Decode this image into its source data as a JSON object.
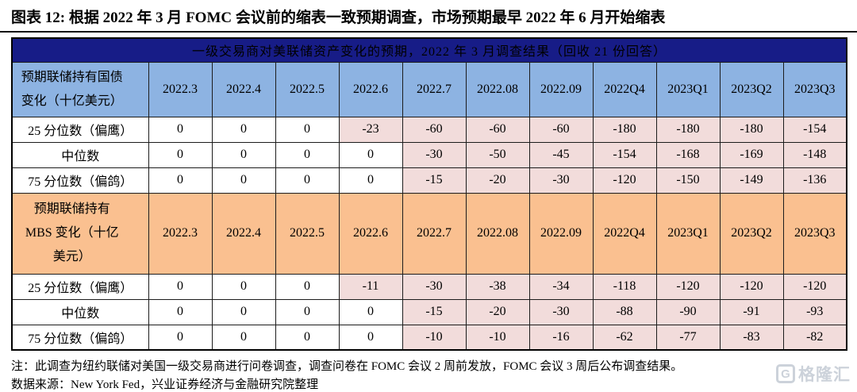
{
  "title": "图表 12: 根据 2022 年 3 月 FOMC 会议前的缩表一致预期调查，市场预期最早 2022 年 6 月开始缩表",
  "table": {
    "banner": "一级交易商对美联储资产变化的预期，2022 年 3 月调查结果（回收 21 份回答）",
    "columns": [
      "2022.3",
      "2022.4",
      "2022.5",
      "2022.6",
      "2022.7",
      "2022.08",
      "2022.09",
      "2022Q4",
      "2023Q1",
      "2023Q2",
      "2023Q3"
    ],
    "divider_before": "2022.7",
    "sections": [
      {
        "header": "预期联储持有国债变化（十亿美元）",
        "rows": [
          {
            "label": "25 分位数（偏鹰）",
            "values": [
              0,
              0,
              0,
              -23,
              -60,
              -60,
              -60,
              -180,
              -180,
              -180,
              -154
            ]
          },
          {
            "label": "中位数",
            "values": [
              0,
              0,
              0,
              0,
              -30,
              -50,
              -45,
              -154,
              -168,
              -169,
              -148
            ]
          },
          {
            "label": "75 分位数（偏鸽）",
            "values": [
              0,
              0,
              0,
              0,
              -15,
              -20,
              -30,
              -120,
              -150,
              -149,
              -136
            ]
          }
        ]
      },
      {
        "header": "预期联储持有 MBS 变化（十亿美元）",
        "rows": [
          {
            "label": "25 分位数（偏鹰）",
            "values": [
              0,
              0,
              0,
              -11,
              -30,
              -38,
              -34,
              -118,
              -120,
              -120,
              -120
            ]
          },
          {
            "label": "中位数",
            "values": [
              0,
              0,
              0,
              0,
              -15,
              -20,
              -30,
              -88,
              -90,
              -91,
              -93
            ]
          },
          {
            "label": "75 分位数（偏鸽）",
            "values": [
              0,
              0,
              0,
              0,
              -10,
              -10,
              -16,
              -62,
              -77,
              -83,
              -82
            ]
          }
        ]
      }
    ]
  },
  "footer": {
    "note": "注：此调查为纽约联储对美国一级交易商进行问卷调查，调查问卷在 FOMC 会议 2 周前发放，FOMC 会议 3 周后公布调查结果。",
    "source": "数据来源：New York Fed，兴业证券经济与金融研究院整理"
  },
  "watermark": {
    "text": "格隆汇",
    "icon_letter": "G"
  },
  "colors": {
    "banner_navy": "#171C87",
    "header_blue": "#8DB3E2",
    "section_orange": "#FAC090",
    "negative_cell_pink": "#F2DCDB",
    "watermark_gray": "#ccd2da"
  }
}
